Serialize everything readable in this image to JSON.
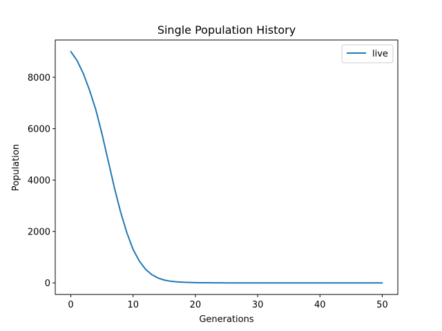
{
  "chart_data": {
    "type": "line",
    "title": "Single Population History",
    "xlabel": "Generations",
    "ylabel": "Population",
    "xlim": [
      -2.5,
      52.5
    ],
    "ylim": [
      -450,
      9450
    ],
    "xticks": [
      0,
      10,
      20,
      30,
      40,
      50
    ],
    "yticks": [
      0,
      2000,
      4000,
      6000,
      8000
    ],
    "grid": false,
    "legend_position": "top-right",
    "series": [
      {
        "name": "live",
        "color": "#1f77b4",
        "x": [
          0,
          1,
          2,
          3,
          4,
          5,
          6,
          7,
          8,
          9,
          10,
          11,
          12,
          13,
          14,
          15,
          16,
          17,
          18,
          19,
          20,
          21,
          22,
          23,
          24,
          25,
          26,
          27,
          28,
          29,
          30,
          31,
          32,
          33,
          34,
          35,
          36,
          37,
          38,
          39,
          40,
          41,
          42,
          43,
          44,
          45,
          46,
          47,
          48,
          49,
          50
        ],
        "y": [
          9000,
          8650,
          8150,
          7500,
          6750,
          5800,
          4750,
          3700,
          2750,
          1950,
          1300,
          850,
          530,
          320,
          190,
          110,
          65,
          40,
          25,
          15,
          10,
          7,
          5,
          3,
          2,
          1,
          1,
          0,
          0,
          0,
          0,
          0,
          0,
          0,
          0,
          0,
          0,
          0,
          0,
          0,
          0,
          0,
          0,
          0,
          0,
          0,
          0,
          0,
          0,
          0,
          0
        ]
      }
    ]
  }
}
